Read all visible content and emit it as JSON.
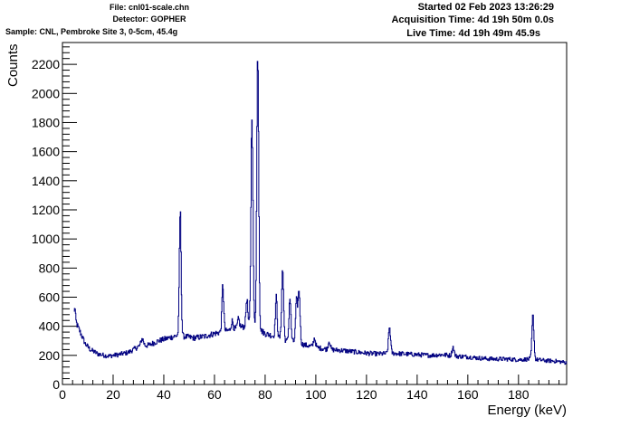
{
  "header": {
    "file": "File: cnl01-scale.chn",
    "detector": "Detector: GOPHER",
    "sample": "Sample: CNL, Pembroke Site 3, 0-5cm, 45.4g",
    "started": "Started 02 Feb 2023 13:26:29",
    "acquisition": "Acquisition Time: 4d 19h 50m 0.0s",
    "live": "Live Time: 4d 19h 49m 45.9s"
  },
  "colors": {
    "line": "#000080",
    "axis": "#000000",
    "background": "#ffffff"
  },
  "chart_data": {
    "type": "line",
    "style": "step",
    "title": "",
    "xlabel": "Energy (keV)",
    "ylabel": "Counts",
    "xlim": [
      0,
      199
    ],
    "ylim": [
      0,
      2350
    ],
    "xticks": [
      0,
      20,
      40,
      60,
      80,
      100,
      120,
      140,
      160,
      180
    ],
    "yticks": [
      0,
      200,
      400,
      600,
      800,
      1000,
      1200,
      1400,
      1600,
      1800,
      2000,
      2200
    ],
    "grid": false,
    "legend": "none",
    "baseline": [
      [
        4.5,
        380
      ],
      [
        5.5,
        420
      ],
      [
        7,
        360
      ],
      [
        9,
        280
      ],
      [
        11,
        240
      ],
      [
        14,
        210
      ],
      [
        18,
        195
      ],
      [
        22,
        205
      ],
      [
        26,
        220
      ],
      [
        30,
        260
      ],
      [
        34,
        270
      ],
      [
        38,
        300
      ],
      [
        42,
        320
      ],
      [
        45,
        335
      ],
      [
        48,
        330
      ],
      [
        52,
        320
      ],
      [
        56,
        330
      ],
      [
        60,
        350
      ],
      [
        64,
        365
      ],
      [
        68,
        380
      ],
      [
        72,
        400
      ],
      [
        76,
        400
      ],
      [
        80,
        350
      ],
      [
        84,
        330
      ],
      [
        88,
        300
      ],
      [
        92,
        290
      ],
      [
        96,
        270
      ],
      [
        100,
        255
      ],
      [
        105,
        240
      ],
      [
        110,
        235
      ],
      [
        115,
        225
      ],
      [
        120,
        215
      ],
      [
        125,
        210
      ],
      [
        130,
        215
      ],
      [
        135,
        210
      ],
      [
        140,
        205
      ],
      [
        145,
        200
      ],
      [
        150,
        205
      ],
      [
        155,
        195
      ],
      [
        160,
        190
      ],
      [
        165,
        180
      ],
      [
        170,
        175
      ],
      [
        175,
        175
      ],
      [
        180,
        170
      ],
      [
        185,
        175
      ],
      [
        190,
        165
      ],
      [
        195,
        160
      ],
      [
        199,
        150
      ]
    ],
    "peaks": [
      {
        "energy": 4.8,
        "height": 140,
        "width": 0.3
      },
      {
        "energy": 31.5,
        "height": 50,
        "width": 0.5
      },
      {
        "energy": 46.5,
        "height": 860,
        "width": 0.35
      },
      {
        "energy": 63.3,
        "height": 320,
        "width": 0.35
      },
      {
        "energy": 67,
        "height": 60,
        "width": 0.4
      },
      {
        "energy": 69.5,
        "height": 60,
        "width": 0.4
      },
      {
        "energy": 72.8,
        "height": 190,
        "width": 0.35
      },
      {
        "energy": 74.8,
        "height": 1460,
        "width": 0.38
      },
      {
        "energy": 77.1,
        "height": 1880,
        "width": 0.38
      },
      {
        "energy": 84.4,
        "height": 270,
        "width": 0.35
      },
      {
        "energy": 86.9,
        "height": 480,
        "width": 0.38
      },
      {
        "energy": 89.8,
        "height": 300,
        "width": 0.38
      },
      {
        "energy": 92.4,
        "height": 280,
        "width": 0.38
      },
      {
        "energy": 93.4,
        "height": 360,
        "width": 0.38
      },
      {
        "energy": 99.5,
        "height": 60,
        "width": 0.4
      },
      {
        "energy": 105.3,
        "height": 60,
        "width": 0.4
      },
      {
        "energy": 129.1,
        "height": 180,
        "width": 0.4
      },
      {
        "energy": 154.2,
        "height": 60,
        "width": 0.4
      },
      {
        "energy": 185.7,
        "height": 300,
        "width": 0.38
      }
    ]
  }
}
